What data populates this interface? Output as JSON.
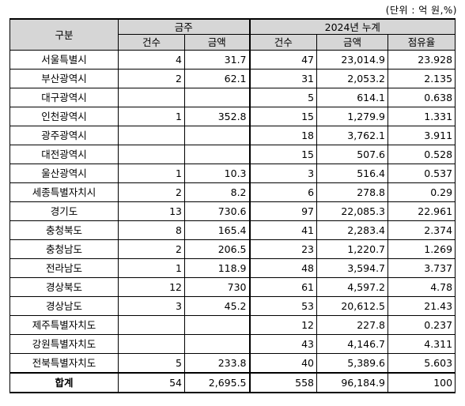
{
  "unit_note": "(단위 : 억 원,%)",
  "header": {
    "category": "구분",
    "group_week": "금주",
    "group_cumulative": "2024년 누계",
    "count": "건수",
    "amount": "금액",
    "count2": "건수",
    "amount2": "금액",
    "share": "점유율"
  },
  "rows": [
    {
      "region": "서울특별시",
      "w_count": "4",
      "w_amount": "31.7",
      "c_count": "47",
      "c_amount": "23,014.9",
      "share": "23.928"
    },
    {
      "region": "부산광역시",
      "w_count": "2",
      "w_amount": "62.1",
      "c_count": "31",
      "c_amount": "2,053.2",
      "share": "2.135"
    },
    {
      "region": "대구광역시",
      "w_count": "",
      "w_amount": "",
      "c_count": "5",
      "c_amount": "614.1",
      "share": "0.638"
    },
    {
      "region": "인천광역시",
      "w_count": "1",
      "w_amount": "352.8",
      "c_count": "15",
      "c_amount": "1,279.9",
      "share": "1.331"
    },
    {
      "region": "광주광역시",
      "w_count": "",
      "w_amount": "",
      "c_count": "18",
      "c_amount": "3,762.1",
      "share": "3.911"
    },
    {
      "region": "대전광역시",
      "w_count": "",
      "w_amount": "",
      "c_count": "15",
      "c_amount": "507.6",
      "share": "0.528"
    },
    {
      "region": "울산광역시",
      "w_count": "1",
      "w_amount": "10.3",
      "c_count": "3",
      "c_amount": "516.4",
      "share": "0.537"
    },
    {
      "region": "세종특별자치시",
      "w_count": "2",
      "w_amount": "8.2",
      "c_count": "6",
      "c_amount": "278.8",
      "share": "0.29"
    },
    {
      "region": "경기도",
      "w_count": "13",
      "w_amount": "730.6",
      "c_count": "97",
      "c_amount": "22,085.3",
      "share": "22.961"
    },
    {
      "region": "충청북도",
      "w_count": "8",
      "w_amount": "165.4",
      "c_count": "41",
      "c_amount": "2,283.4",
      "share": "2.374"
    },
    {
      "region": "충청남도",
      "w_count": "2",
      "w_amount": "206.5",
      "c_count": "23",
      "c_amount": "1,220.7",
      "share": "1.269"
    },
    {
      "region": "전라남도",
      "w_count": "1",
      "w_amount": "118.9",
      "c_count": "48",
      "c_amount": "3,594.7",
      "share": "3.737"
    },
    {
      "region": "경상북도",
      "w_count": "12",
      "w_amount": "730",
      "c_count": "61",
      "c_amount": "4,597.2",
      "share": "4.78"
    },
    {
      "region": "경상남도",
      "w_count": "3",
      "w_amount": "45.2",
      "c_count": "53",
      "c_amount": "20,612.5",
      "share": "21.43"
    },
    {
      "region": "제주특별자치도",
      "w_count": "",
      "w_amount": "",
      "c_count": "12",
      "c_amount": "227.8",
      "share": "0.237"
    },
    {
      "region": "강원특별자치도",
      "w_count": "",
      "w_amount": "",
      "c_count": "43",
      "c_amount": "4,146.7",
      "share": "4.311"
    },
    {
      "region": "전북특별자치도",
      "w_count": "5",
      "w_amount": "233.8",
      "c_count": "40",
      "c_amount": "5,389.6",
      "share": "5.603"
    }
  ],
  "total": {
    "region": "합계",
    "w_count": "54",
    "w_amount": "2,695.5",
    "c_count": "558",
    "c_amount": "96,184.9",
    "share": "100"
  }
}
